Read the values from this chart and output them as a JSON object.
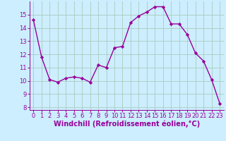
{
  "x": [
    0,
    1,
    2,
    3,
    4,
    5,
    6,
    7,
    8,
    9,
    10,
    11,
    12,
    13,
    14,
    15,
    16,
    17,
    18,
    19,
    20,
    21,
    22,
    23
  ],
  "y": [
    14.6,
    11.8,
    10.1,
    9.9,
    10.2,
    10.3,
    10.2,
    9.9,
    11.2,
    11.0,
    12.5,
    12.6,
    14.4,
    14.9,
    15.2,
    15.6,
    15.6,
    14.3,
    14.3,
    13.5,
    12.1,
    11.5,
    10.1,
    8.3
  ],
  "line_color": "#990099",
  "marker": "D",
  "markersize": 2.2,
  "linewidth": 1.0,
  "bg_color": "#cceeff",
  "grid_color": "#aaccbb",
  "xlabel": "Windchill (Refroidissement éolien,°C)",
  "xlim": [
    -0.5,
    23.5
  ],
  "ylim": [
    7.8,
    16.0
  ],
  "yticks": [
    8,
    9,
    10,
    11,
    12,
    13,
    14,
    15
  ],
  "xticks": [
    0,
    1,
    2,
    3,
    4,
    5,
    6,
    7,
    8,
    9,
    10,
    11,
    12,
    13,
    14,
    15,
    16,
    17,
    18,
    19,
    20,
    21,
    22,
    23
  ],
  "tick_color": "#990099",
  "label_color": "#990099",
  "axis_color": "#990099",
  "xlabel_fontsize": 7.0,
  "tick_fontsize": 6.0
}
